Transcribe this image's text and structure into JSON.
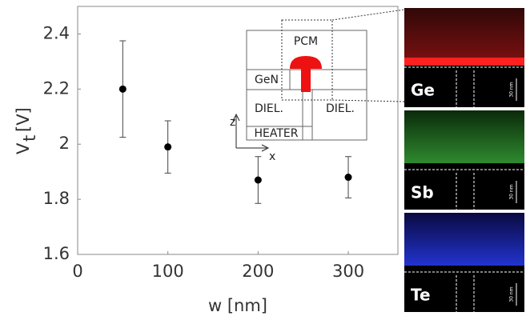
{
  "chart_data": {
    "type": "scatter",
    "x_label": "w [nm]",
    "y_label": {
      "symbol": "V",
      "subscript": "t",
      "unit": "[V]"
    },
    "series": [
      {
        "color": "#000000",
        "x": [
          50,
          100,
          200,
          300
        ],
        "values": [
          2.2,
          1.99,
          1.87,
          1.88
        ],
        "errors": [
          0.175,
          0.095,
          0.085,
          0.075
        ]
      }
    ],
    "xlim": [
      0,
      355
    ],
    "xticks": [
      0,
      100,
      200,
      300
    ],
    "ylim": [
      1.6,
      2.5
    ],
    "yticks": [
      1.6,
      1.8,
      2,
      2.2,
      2.4
    ]
  },
  "inset": {
    "labels": {
      "pcm": "PCM",
      "gen": "GeN",
      "diel_left": "DIEL.",
      "diel_right": "DIEL.",
      "heater": "HEATER",
      "z": "z",
      "x": "x"
    }
  },
  "panels": [
    {
      "element": "Ge",
      "scale": "30 nm"
    },
    {
      "element": "Sb",
      "scale": "30 nm"
    },
    {
      "element": "Te",
      "scale": "30 nm"
    }
  ]
}
